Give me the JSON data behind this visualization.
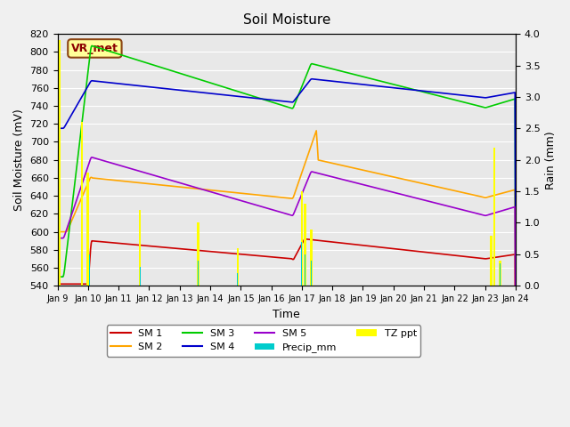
{
  "title": "Soil Moisture",
  "ylabel_left": "Soil Moisture (mV)",
  "ylabel_right": "Rain (mm)",
  "xlabel": "Time",
  "ylim_left": [
    540,
    820
  ],
  "ylim_right": [
    0.0,
    4.0
  ],
  "yticks_left": [
    540,
    560,
    580,
    600,
    620,
    640,
    660,
    680,
    700,
    720,
    740,
    760,
    780,
    800,
    820
  ],
  "yticks_right": [
    0.0,
    0.5,
    1.0,
    1.5,
    2.0,
    2.5,
    3.0,
    3.5,
    4.0
  ],
  "xtick_labels": [
    "Jan 9",
    "Jan 10",
    "Jan 11",
    "Jan 12",
    "Jan 13",
    "Jan 14",
    "Jan 15",
    "Jan 16",
    "Jan 17",
    "Jan 18",
    "Jan 19",
    "Jan 20",
    "Jan 21",
    "Jan 22",
    "Jan 23",
    "Jan 24"
  ],
  "background_color": "#e8e8e8",
  "grid_color": "#ffffff",
  "annotation_text": "VR_met",
  "annotation_color": "#8b0000",
  "annotation_bg": "#ffff99",
  "annotation_border": "#8b4513",
  "sm1_color": "#cc0000",
  "sm2_color": "#ffa500",
  "sm3_color": "#00cc00",
  "sm4_color": "#0000cc",
  "sm5_color": "#9900cc",
  "precip_color": "#00cccc",
  "tzppt_color": "#ffff00",
  "precip_times": [
    1.05,
    2.7,
    4.6,
    5.9,
    8.0,
    8.1,
    8.3,
    14.5
  ],
  "precip_vals": [
    0.5,
    0.3,
    0.4,
    0.2,
    0.7,
    0.5,
    0.4,
    0.35
  ],
  "tzppt_times": [
    0.05,
    0.8,
    1.0,
    2.7,
    4.6,
    5.9,
    8.0,
    8.1,
    8.3,
    14.2,
    14.3,
    14.5
  ],
  "tzppt_vals": [
    3.9,
    2.6,
    1.8,
    1.2,
    1.0,
    0.6,
    1.5,
    1.3,
    0.9,
    0.8,
    2.2,
    0.4
  ]
}
